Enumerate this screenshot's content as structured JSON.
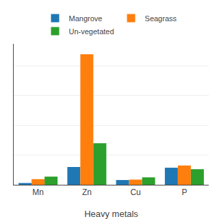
{
  "chart_data": {
    "type": "bar",
    "categories": [
      "Mn",
      "Zn",
      "Cu",
      "P"
    ],
    "series": [
      {
        "name": "Mangrove",
        "values": [
          1.2,
          12,
          3.2,
          11.5
        ]
      },
      {
        "name": "Seagrass",
        "values": [
          3.8,
          88,
          3.5,
          13.0
        ]
      },
      {
        "name": "Un-vegetated",
        "values": [
          5.5,
          28,
          5.0,
          10.5
        ]
      }
    ],
    "xlabel": "Heavy metals",
    "ylim": [
      0,
      95
    ],
    "yticks": [
      0,
      20,
      40,
      60,
      80
    ],
    "grid": true,
    "legend": "top",
    "tick_labels": "x"
  }
}
